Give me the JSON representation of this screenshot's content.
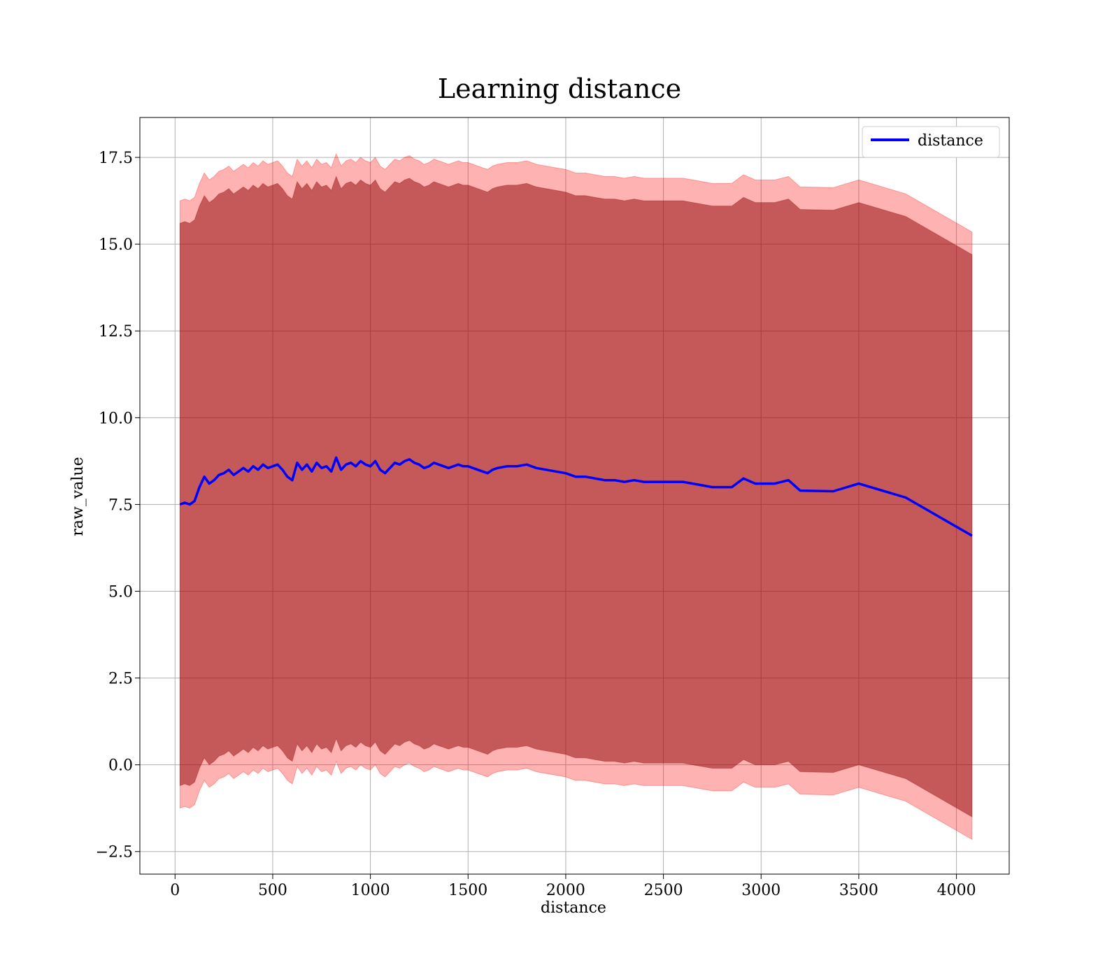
{
  "chart_data": {
    "type": "area",
    "title": "Learning distance",
    "xlabel": "distance",
    "ylabel": "raw_value",
    "xlim": [
      -180,
      4270
    ],
    "ylim": [
      -3.15,
      18.65
    ],
    "xticks": [
      0,
      500,
      1000,
      1500,
      2000,
      2500,
      3000,
      3500,
      4000
    ],
    "xtick_labels": [
      "0",
      "500",
      "1000",
      "1500",
      "2000",
      "2500",
      "3000",
      "3500",
      "4000"
    ],
    "yticks": [
      -2.5,
      0.0,
      2.5,
      5.0,
      7.5,
      10.0,
      12.5,
      15.0,
      17.5
    ],
    "ytick_labels": [
      "−2.5",
      "0.0",
      "2.5",
      "5.0",
      "7.5",
      "10.0",
      "12.5",
      "15.0",
      "17.5"
    ],
    "grid": true,
    "legend_position": "top-right",
    "legend": [
      "distance"
    ],
    "series": [
      {
        "name": "distance",
        "color": "#0000ff",
        "x": [
          25,
          50,
          75,
          100,
          125,
          150,
          175,
          200,
          225,
          250,
          275,
          300,
          325,
          350,
          375,
          400,
          425,
          450,
          475,
          500,
          525,
          550,
          575,
          600,
          625,
          650,
          675,
          700,
          725,
          750,
          775,
          800,
          825,
          850,
          875,
          900,
          925,
          950,
          975,
          1000,
          1025,
          1050,
          1075,
          1100,
          1125,
          1150,
          1175,
          1200,
          1225,
          1250,
          1275,
          1300,
          1325,
          1350,
          1375,
          1400,
          1425,
          1450,
          1475,
          1500,
          1525,
          1550,
          1575,
          1600,
          1625,
          1650,
          1700,
          1750,
          1800,
          1850,
          1900,
          1950,
          2000,
          2050,
          2100,
          2150,
          2200,
          2250,
          2300,
          2350,
          2400,
          2450,
          2500,
          2550,
          2600,
          2650,
          2700,
          2750,
          2800,
          2850,
          2910,
          2970,
          3070,
          3140,
          3200,
          3370,
          3500,
          3740,
          4080
        ],
        "y": [
          7.5,
          7.55,
          7.5,
          7.6,
          8.0,
          8.3,
          8.1,
          8.2,
          8.35,
          8.4,
          8.5,
          8.35,
          8.45,
          8.55,
          8.45,
          8.6,
          8.5,
          8.65,
          8.55,
          8.6,
          8.65,
          8.5,
          8.3,
          8.2,
          8.7,
          8.5,
          8.65,
          8.45,
          8.7,
          8.55,
          8.6,
          8.45,
          8.85,
          8.5,
          8.65,
          8.7,
          8.6,
          8.75,
          8.65,
          8.6,
          8.75,
          8.5,
          8.4,
          8.55,
          8.7,
          8.65,
          8.75,
          8.8,
          8.7,
          8.65,
          8.55,
          8.6,
          8.7,
          8.65,
          8.6,
          8.55,
          8.6,
          8.65,
          8.6,
          8.6,
          8.55,
          8.5,
          8.45,
          8.4,
          8.5,
          8.55,
          8.6,
          8.6,
          8.65,
          8.55,
          8.5,
          8.45,
          8.4,
          8.3,
          8.3,
          8.25,
          8.2,
          8.2,
          8.15,
          8.2,
          8.15,
          8.15,
          8.15,
          8.15,
          8.15,
          8.1,
          8.05,
          8.0,
          8.0,
          8.0,
          8.25,
          8.1,
          8.1,
          8.2,
          7.9,
          7.88,
          8.1,
          7.7,
          6.6
        ]
      }
    ],
    "bands": [
      {
        "color": "#ff0000",
        "offset": 8.75,
        "description_values": "mean ± offset"
      },
      {
        "color": "#8b0000",
        "offset": 8.1,
        "description_values": "mean ± offset"
      }
    ]
  }
}
